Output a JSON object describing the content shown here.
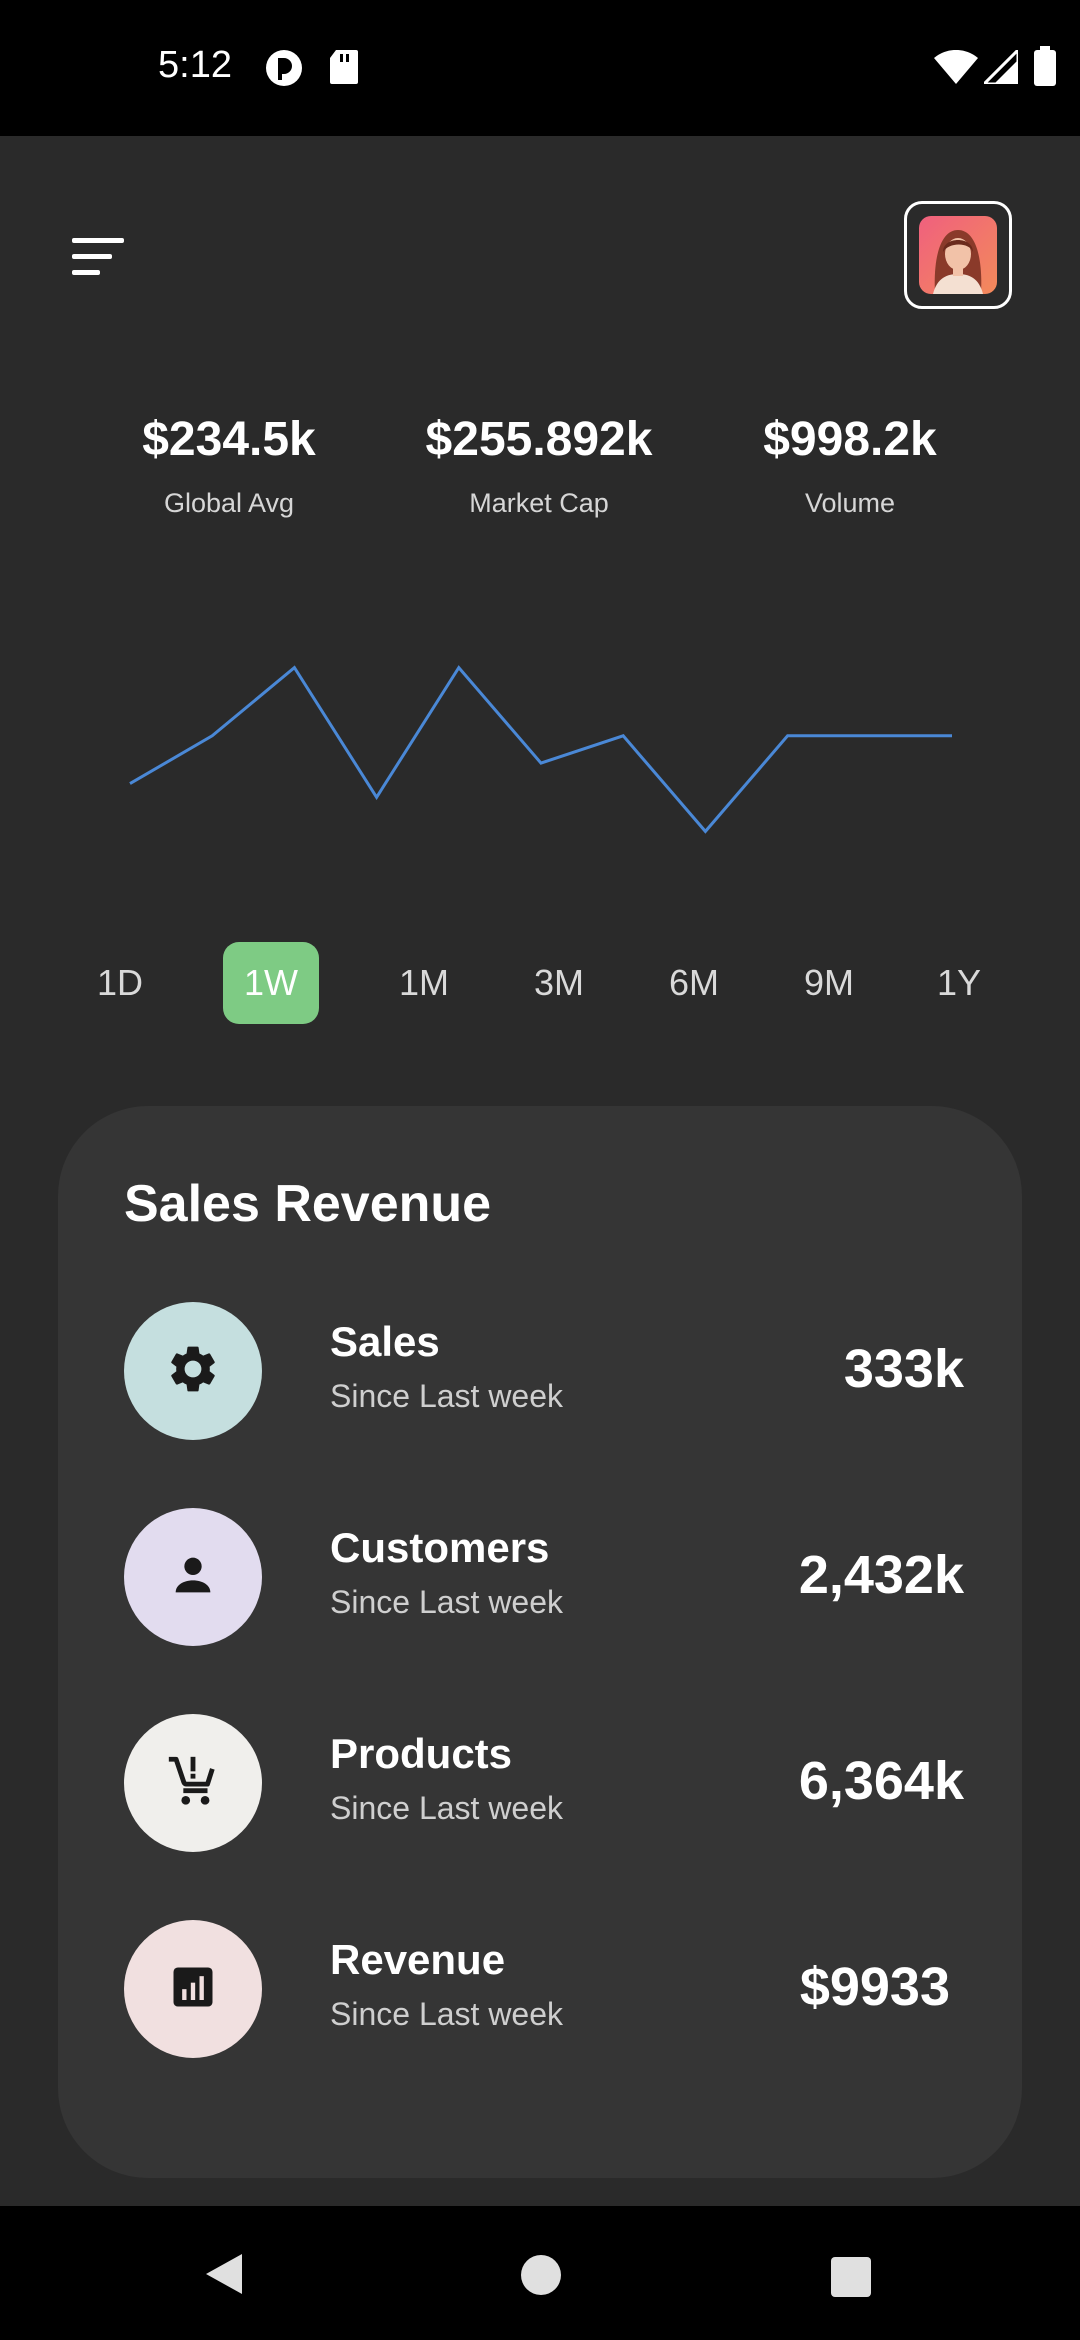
{
  "status_bar": {
    "time": "5:12"
  },
  "stats": [
    {
      "value": "$234.5k",
      "label": "Global Avg"
    },
    {
      "value": "$255.892k",
      "label": "Market Cap"
    },
    {
      "value": "$998.2k",
      "label": "Volume"
    }
  ],
  "chart_data": {
    "type": "line",
    "x": [
      0,
      1,
      2,
      3,
      4,
      5,
      6,
      7,
      8,
      9,
      10
    ],
    "series": [
      {
        "values": [
          55,
          62,
          72,
          53,
          72,
          58,
          62,
          48,
          62,
          62,
          62
        ]
      }
    ],
    "xlabel": "",
    "ylabel": "",
    "ylim": [
      40,
      80
    ],
    "grid": false,
    "color": "#4a88d6"
  },
  "ranges": {
    "items": [
      "1D",
      "1W",
      "1M",
      "3M",
      "6M",
      "9M",
      "1Y"
    ],
    "active": "1W",
    "active_color": "#7ecb84"
  },
  "sales_revenue": {
    "title": "Sales Revenue",
    "rows": [
      {
        "title": "Sales",
        "subtitle": "Since Last week",
        "value": "333k",
        "icon": "gear-icon",
        "icon_bg": "#c5dfdf"
      },
      {
        "title": "Customers",
        "subtitle": "Since Last week",
        "value": "2,432k",
        "icon": "person-icon",
        "icon_bg": "#e2dcef"
      },
      {
        "title": "Products",
        "subtitle": "Since Last week",
        "value": "6,364k",
        "icon": "cart-alert-icon",
        "icon_bg": "#f0efec"
      },
      {
        "title": "Revenue",
        "subtitle": "Since Last week",
        "value": "$9933",
        "icon": "bar-chart-icon",
        "icon_bg": "#f1e0e0"
      }
    ]
  },
  "colors": {
    "background": "#2a2a2a",
    "card": "#353535",
    "accent": "#7ecb84",
    "line": "#4a88d6"
  }
}
